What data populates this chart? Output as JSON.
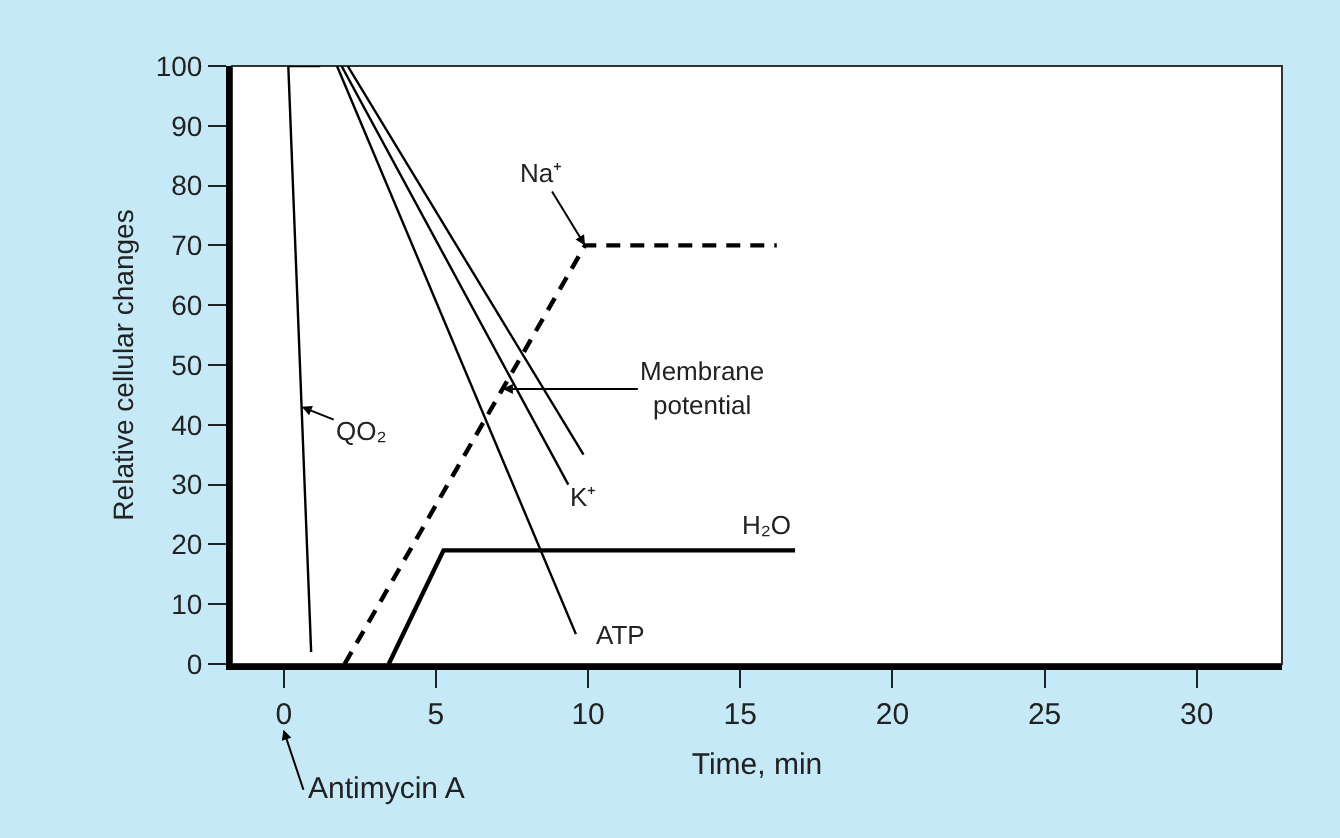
{
  "chart_data": {
    "type": "line",
    "xlabel": "Time, min",
    "ylabel": "Relative cellular changes",
    "xlim": [
      -1.7,
      32.8
    ],
    "ylim": [
      0,
      100
    ],
    "xticks": [
      0,
      5,
      10,
      15,
      20,
      25,
      30
    ],
    "yticks": [
      0,
      10,
      20,
      30,
      40,
      50,
      60,
      70,
      80,
      90,
      100
    ],
    "grid": false,
    "series": [
      {
        "color": "#000000",
        "line_style": "solid",
        "x": [
          1.2,
          0.15,
          0.9
        ],
        "values": [
          100,
          100,
          2
        ]
      },
      {
        "color": "#000000",
        "line_style": "solid",
        "x": [
          1.75,
          9.6
        ],
        "values": [
          100,
          5
        ]
      },
      {
        "color": "#000000",
        "line_style": "solid",
        "x": [
          1.9,
          9.35
        ],
        "values": [
          100,
          30
        ]
      },
      {
        "color": "#000000",
        "line_style": "solid",
        "x": [
          2.1,
          9.85
        ],
        "values": [
          100,
          35
        ]
      },
      {
        "color": "#000000",
        "line_style": "dashed",
        "x": [
          2.0,
          9.9,
          16.2
        ],
        "values": [
          0,
          70,
          70
        ]
      },
      {
        "color": "#000000",
        "line_style": "solid",
        "x": [
          3.45,
          5.25,
          16.8
        ],
        "values": [
          0,
          19,
          19
        ]
      }
    ],
    "annotations": [
      {
        "text": "QO₂",
        "x": 0.59,
        "y": 43
      },
      {
        "text": "Na⁺",
        "x": 9.9,
        "y": 70
      },
      {
        "text": "Membrane potential",
        "x": 7.2,
        "y": 46
      },
      {
        "text": "K⁺",
        "x": 9.85,
        "y": 35
      },
      {
        "text": "ATP",
        "x": 9.6,
        "y": 5
      },
      {
        "text": "H₂O",
        "x": 16.8,
        "y": 19
      },
      "Antimycin A"
    ]
  }
}
